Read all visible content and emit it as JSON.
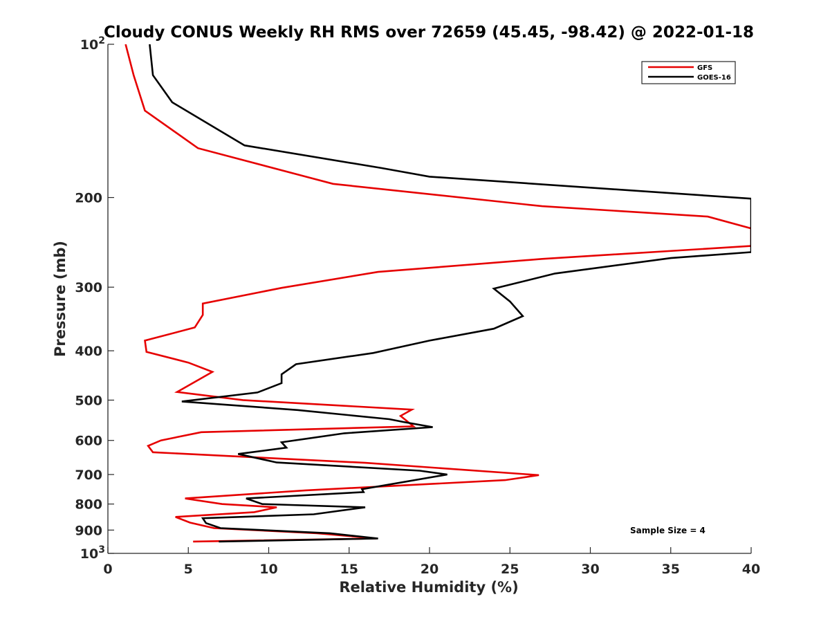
{
  "chart_data": {
    "type": "line",
    "title": "Cloudy CONUS Weekly RH RMS over 72659 (45.45, -98.42) @ 2022-01-18",
    "xlabel": "Relative Humidity (%)",
    "ylabel": "Pressure (mb)",
    "xlim": [
      0,
      40
    ],
    "ylim": [
      100,
      1000
    ],
    "yscale": "log",
    "y_reversed": true,
    "grid": false,
    "legend_position": "top-right",
    "x_ticks": [
      0,
      5,
      10,
      15,
      20,
      25,
      30,
      35,
      40
    ],
    "y_ticks": [
      {
        "value": 100,
        "label": "10",
        "exp": "2"
      },
      {
        "value": 200,
        "label": "200"
      },
      {
        "value": 300,
        "label": "300"
      },
      {
        "value": 400,
        "label": "400"
      },
      {
        "value": 500,
        "label": "500"
      },
      {
        "value": 600,
        "label": "600"
      },
      {
        "value": 700,
        "label": "700"
      },
      {
        "value": 800,
        "label": "800"
      },
      {
        "value": 900,
        "label": "900"
      },
      {
        "value": 1000,
        "label": "10",
        "exp": "3"
      }
    ],
    "annotation": "Sample Size = 4",
    "series": [
      {
        "name": "GFS",
        "color": "#e60000",
        "points": [
          [
            1.1,
            100
          ],
          [
            1.6,
            115
          ],
          [
            2.3,
            135
          ],
          [
            5.6,
            160
          ],
          [
            14.0,
            188
          ],
          [
            27.0,
            208
          ],
          [
            37.3,
            218
          ],
          [
            40.0,
            230
          ],
          [
            40.0,
            249
          ],
          [
            27.0,
            264
          ],
          [
            16.8,
            280
          ],
          [
            10.8,
            301
          ],
          [
            5.9,
            323
          ],
          [
            5.9,
            340
          ],
          [
            5.4,
            360
          ],
          [
            2.3,
            382
          ],
          [
            2.4,
            402
          ],
          [
            5.0,
            422
          ],
          [
            6.5,
            440
          ],
          [
            4.3,
            482
          ],
          [
            8.4,
            500
          ],
          [
            18.9,
            522
          ],
          [
            18.2,
            537
          ],
          [
            19.0,
            563
          ],
          [
            5.8,
            578
          ],
          [
            3.3,
            600
          ],
          [
            2.5,
            615
          ],
          [
            2.8,
            633
          ],
          [
            16.0,
            664
          ],
          [
            26.8,
            702
          ],
          [
            24.7,
            718
          ],
          [
            12.3,
            752
          ],
          [
            4.8,
            780
          ],
          [
            7.1,
            800
          ],
          [
            10.5,
            812
          ],
          [
            9.1,
            830
          ],
          [
            4.2,
            848
          ],
          [
            5.1,
            870
          ],
          [
            6.6,
            892
          ],
          [
            13.0,
            913
          ],
          [
            16.7,
            935
          ],
          [
            5.3,
            948
          ]
        ]
      },
      {
        "name": "GOES-16",
        "color": "#000000",
        "points": [
          [
            2.6,
            100
          ],
          [
            2.8,
            115
          ],
          [
            4.0,
            130
          ],
          [
            8.5,
            158
          ],
          [
            17.0,
            175
          ],
          [
            20.0,
            182
          ],
          [
            40.0,
            201
          ],
          [
            40.0,
            256
          ],
          [
            35.0,
            263
          ],
          [
            27.8,
            282
          ],
          [
            24.0,
            302
          ],
          [
            25.0,
            320
          ],
          [
            25.8,
            342
          ],
          [
            24.0,
            362
          ],
          [
            20.0,
            382
          ],
          [
            16.5,
            404
          ],
          [
            11.7,
            425
          ],
          [
            10.8,
            445
          ],
          [
            10.8,
            463
          ],
          [
            9.3,
            483
          ],
          [
            4.6,
            503
          ],
          [
            11.8,
            523
          ],
          [
            17.5,
            545
          ],
          [
            18.4,
            552
          ],
          [
            20.2,
            565
          ],
          [
            14.7,
            581
          ],
          [
            10.8,
            605
          ],
          [
            11.1,
            620
          ],
          [
            8.1,
            638
          ],
          [
            10.5,
            663
          ],
          [
            19.4,
            688
          ],
          [
            21.1,
            700
          ],
          [
            15.8,
            748
          ],
          [
            15.9,
            758
          ],
          [
            8.6,
            780
          ],
          [
            9.6,
            800
          ],
          [
            16.0,
            812
          ],
          [
            12.8,
            838
          ],
          [
            5.9,
            853
          ],
          [
            6.1,
            872
          ],
          [
            7.0,
            892
          ],
          [
            13.8,
            913
          ],
          [
            16.8,
            935
          ],
          [
            6.9,
            948
          ]
        ]
      }
    ]
  }
}
